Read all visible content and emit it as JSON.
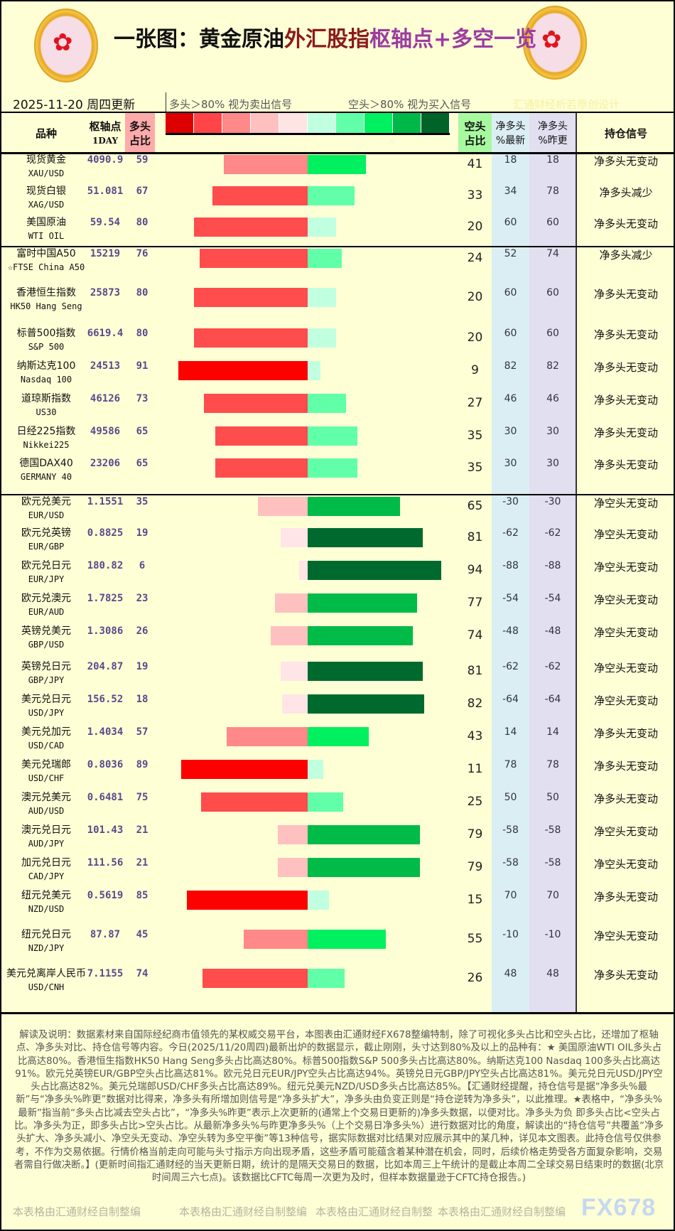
{
  "header": {
    "title_part1": "一张图：黄金原油",
    "title_part2": "外汇股指",
    "title_part3": "枢轴点+多空一览",
    "date": "2025-11-20 周四更新",
    "legend_long": "多头＞80% 视为卖出信号",
    "legend_short": "空头＞80% 视为买入信号",
    "designer": "汇通财经析若原创设计",
    "logo_text": "fx678 yly"
  },
  "columns": {
    "name": "品种",
    "pivot": "枢轴点",
    "pivot_sub": "1DAY",
    "long": "多头",
    "long_sub": "占比",
    "short": "空头",
    "short_sub": "占比",
    "net_latest": "净多头",
    "net_latest_sub": "%最新",
    "net_prev": "净多头",
    "net_prev_sub": "%昨更",
    "signal": "持仓信号"
  },
  "legend_colors": [
    "#dd0000",
    "#ff4545",
    "#ff8888",
    "#ffc0c0",
    "#ffe4e4",
    "#c0ffe0",
    "#60ffa8",
    "#00f060",
    "#00b848",
    "#006428"
  ],
  "rows": [
    {
      "name": "现货黄金",
      "code": "XAU/USD",
      "pivot": "4090.9",
      "long": 59,
      "short": 41,
      "net": "18",
      "prev": "18",
      "signal": "净多头无变动"
    },
    {
      "name": "现货白银",
      "code": "XAG/USD",
      "pivot": "51.081",
      "long": 67,
      "short": 33,
      "net": "34",
      "prev": "78",
      "signal": "净多头减少"
    },
    {
      "name": "美国原油",
      "code": "WTI OIL",
      "pivot": "59.54",
      "long": 80,
      "short": 20,
      "net": "60",
      "prev": "60",
      "signal": "净多头无变动"
    },
    {
      "name": "富时中国A50",
      "code": "☆FTSE China A50",
      "pivot": "15219",
      "long": 76,
      "short": 24,
      "net": "52",
      "prev": "74",
      "signal": "净多头减少"
    },
    {
      "name": "香港恒生指数",
      "code": "HK50 Hang Seng",
      "pivot": "25873",
      "long": 80,
      "short": 20,
      "net": "60",
      "prev": "60",
      "signal": "净多头无变动"
    },
    {
      "name": "标普500指数",
      "code": "S&P 500",
      "pivot": "6619.4",
      "long": 80,
      "short": 20,
      "net": "60",
      "prev": "60",
      "signal": "净多头无变动"
    },
    {
      "name": "纳斯达克100",
      "code": "Nasdaq 100",
      "pivot": "24513",
      "long": 91,
      "short": 9,
      "net": "82",
      "prev": "82",
      "signal": "净多头无变动"
    },
    {
      "name": "道琼斯指数",
      "code": "US30",
      "pivot": "46126",
      "long": 73,
      "short": 27,
      "net": "46",
      "prev": "46",
      "signal": "净多头无变动"
    },
    {
      "name": "日经225指数",
      "code": "Nikkei225",
      "pivot": "49586",
      "long": 65,
      "short": 35,
      "net": "30",
      "prev": "30",
      "signal": "净多头无变动"
    },
    {
      "name": "德国DAX40",
      "code": "GERMANY 40",
      "pivot": "23206",
      "long": 65,
      "short": 35,
      "net": "30",
      "prev": "30",
      "signal": "净多头无变动"
    },
    {
      "name": "欧元兑美元",
      "code": "EUR/USD",
      "pivot": "1.1551",
      "long": 35,
      "short": 65,
      "net": "-30",
      "prev": "-30",
      "signal": "净空头无变动"
    },
    {
      "name": "欧元兑英镑",
      "code": "EUR/GBP",
      "pivot": "0.8825",
      "long": 19,
      "short": 81,
      "net": "-62",
      "prev": "-62",
      "signal": "净空头无变动"
    },
    {
      "name": "欧元兑日元",
      "code": "EUR/JPY",
      "pivot": "180.82",
      "long": 6,
      "short": 94,
      "net": "-88",
      "prev": "-88",
      "signal": "净空头无变动"
    },
    {
      "name": "欧元兑澳元",
      "code": "EUR/AUD",
      "pivot": "1.7825",
      "long": 23,
      "short": 77,
      "net": "-54",
      "prev": "-54",
      "signal": "净空头无变动"
    },
    {
      "name": "英镑兑美元",
      "code": "GBP/USD",
      "pivot": "1.3086",
      "long": 26,
      "short": 74,
      "net": "-48",
      "prev": "-48",
      "signal": "净空头无变动"
    },
    {
      "name": "英镑兑日元",
      "code": "GBP/JPY",
      "pivot": "204.87",
      "long": 19,
      "short": 81,
      "net": "-62",
      "prev": "-62",
      "signal": "净空头无变动"
    },
    {
      "name": "美元兑日元",
      "code": "USD/JPY",
      "pivot": "156.52",
      "long": 18,
      "short": 82,
      "net": "-64",
      "prev": "-64",
      "signal": "净空头无变动"
    },
    {
      "name": "美元兑加元",
      "code": "USD/CAD",
      "pivot": "1.4034",
      "long": 57,
      "short": 43,
      "net": "14",
      "prev": "14",
      "signal": "净多头无变动"
    },
    {
      "name": "美元兑瑞郎",
      "code": "USD/CHF",
      "pivot": "0.8036",
      "long": 89,
      "short": 11,
      "net": "78",
      "prev": "78",
      "signal": "净多头无变动"
    },
    {
      "name": "澳元兑美元",
      "code": "AUD/USD",
      "pivot": "0.6481",
      "long": 75,
      "short": 25,
      "net": "50",
      "prev": "50",
      "signal": "净多头无变动"
    },
    {
      "name": "澳元兑日元",
      "code": "AUD/JPY",
      "pivot": "101.43",
      "long": 21,
      "short": 79,
      "net": "-58",
      "prev": "-58",
      "signal": "净空头无变动"
    },
    {
      "name": "加元兑日元",
      "code": "CAD/JPY",
      "pivot": "111.56",
      "long": 21,
      "short": 79,
      "net": "-58",
      "prev": "-58",
      "signal": "净空头无变动"
    },
    {
      "name": "纽元兑美元",
      "code": "NZD/USD",
      "pivot": "0.5619",
      "long": 85,
      "short": 15,
      "net": "70",
      "prev": "70",
      "signal": "净多头无变动"
    },
    {
      "name": "纽元兑日元",
      "code": "NZD/JPY",
      "pivot": "87.87",
      "long": 45,
      "short": 55,
      "net": "-10",
      "prev": "-10",
      "signal": "净空头无变动"
    },
    {
      "name": "美元兑离岸人民币",
      "code": "USD/CNH",
      "pivot": "7.1155",
      "long": 74,
      "short": 26,
      "net": "48",
      "prev": "48",
      "signal": "净多头无变动"
    }
  ],
  "footer": {
    "notes": "解读及说明：数据素材来自国际经纪商市值领先的某权威交易平台，本图表由汇通财经FX678整编特制，除了可视化多头占比和空头占比，还增加了枢轴点、净多头对比、持仓信号等内容。今日(2025/11/20周四)最新出炉的数据显示，截止刚刚，头寸达到80%及以上的品种有：★ 美国原油WTI OIL多头占比高达80%。香港恒生指数HK50 Hang Seng多头占比高达80%。标普500指数S&P 500多头占比高达80%。纳斯达克100 Nasdaq 100多头占比高达91%。欧元兑英镑EUR/GBP空头占比高达81%。欧元兑日元EUR/JPY空头占比高达94%。英镑兑日元GBP/JPY空头占比高达81%。美元兑日元USD/JPY空头占比高达82%。美元兑瑞郎USD/CHF多头占比高达89%。纽元兑美元NZD/USD多头占比高达85%。【汇通财经提醒，持仓信号是据“净多头%最新”与“净多头%昨更”数据对比得来，净多头有所增加则信号是“净多头扩大”，净多头由负变正则是“持仓逆转为净多头”，以此推理。★表格中，“净多头%最新”指当前“多头占比减去空头占比”，“净多头%昨更”表示上次更新的(通常上个交易日更新的)净多头数据，以便对比。净多头为负 即多头占比<空头占比。净多头为正，即多头占比>空头占比。从最新净多头%与昨更净多头%（上个交易日净多头%）进行数据对比的角度，解读出的“持仓信号”共覆盖“净多头扩大、净多头减小、净空头无变动、净空头转为多空平衡”等13种信号，据实际数据对比结果对应展示其中的某几种，详见本文图表。此持仓信号仅供参考，不作为交易依据。行情价格当前走向可能与头寸指示方向出现矛盾，这些矛盾可能蕴含着某种潜在机会，同时，后续价格走势受各方面复杂影响，交易者需自行做决断。】(更新时间指汇通财经的当天更新日期，统计的是隔天交易日的数据，比如本周三上午统计的是截止本周二全球交易日结束时的数据(北京时间周三六七点)。该数据比CFTC每周一次更为及时，但样本数据量逊于CFTC持仓报告。)",
    "watermark1": "本表格由汇通财经自制整编",
    "watermark2": "本表格由汇通财经自制整编",
    "watermark3": "本表格由汇通财经自制整",
    "watermark4": "本表格由汇通财经自制整编",
    "brand": "FX678"
  }
}
